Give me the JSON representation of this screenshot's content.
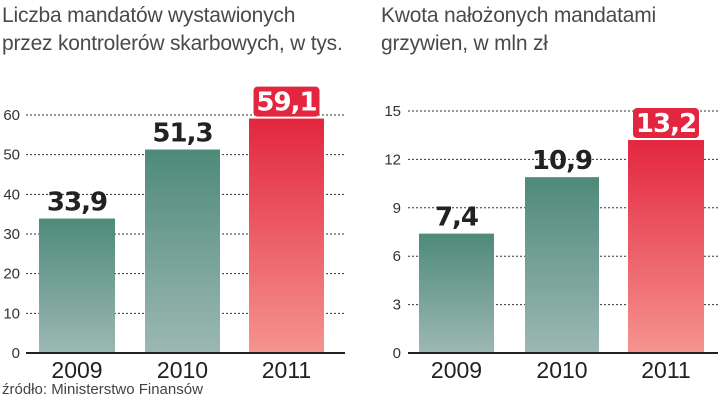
{
  "chart_data": [
    {
      "type": "bar",
      "title_lines": [
        "Liczba mandatów wystawionych",
        "przez kontrolerów skarbowych, w tys."
      ],
      "categories": [
        "2009",
        "2010",
        "2011"
      ],
      "values": [
        33.9,
        51.3,
        59.1
      ],
      "value_labels": [
        "33,9",
        "51,3",
        "59,1"
      ],
      "yticks": [
        0,
        10,
        20,
        30,
        40,
        50,
        60
      ],
      "ytick_labels": [
        "0",
        "10",
        "20",
        "30",
        "40",
        "50",
        "60"
      ],
      "ylim": [
        0,
        60
      ],
      "grid": true,
      "highlight_index": 2
    },
    {
      "type": "bar",
      "title_lines": [
        "Kwota nałożonych mandatami",
        "grzywien, w mln zł"
      ],
      "categories": [
        "2009",
        "2010",
        "2011"
      ],
      "values": [
        7.4,
        10.9,
        13.2
      ],
      "value_labels": [
        "7,4",
        "10,9",
        "13,2"
      ],
      "yticks": [
        0,
        3,
        6,
        9,
        12,
        15
      ],
      "ytick_labels": [
        "0",
        "3",
        "6",
        "9",
        "12",
        "15"
      ],
      "ylim": [
        0,
        15
      ],
      "grid": true,
      "highlight_index": 2
    }
  ],
  "colors": {
    "bar_top": "#4e8a79",
    "bar_bottom": "#9cb8b3",
    "highlight_top": "#e3263f",
    "highlight_bottom": "#f5948f",
    "badge": "#e3263f",
    "grid": "#333333",
    "axis": "#222222"
  },
  "source": "źródło: Ministerstwo Finansów"
}
